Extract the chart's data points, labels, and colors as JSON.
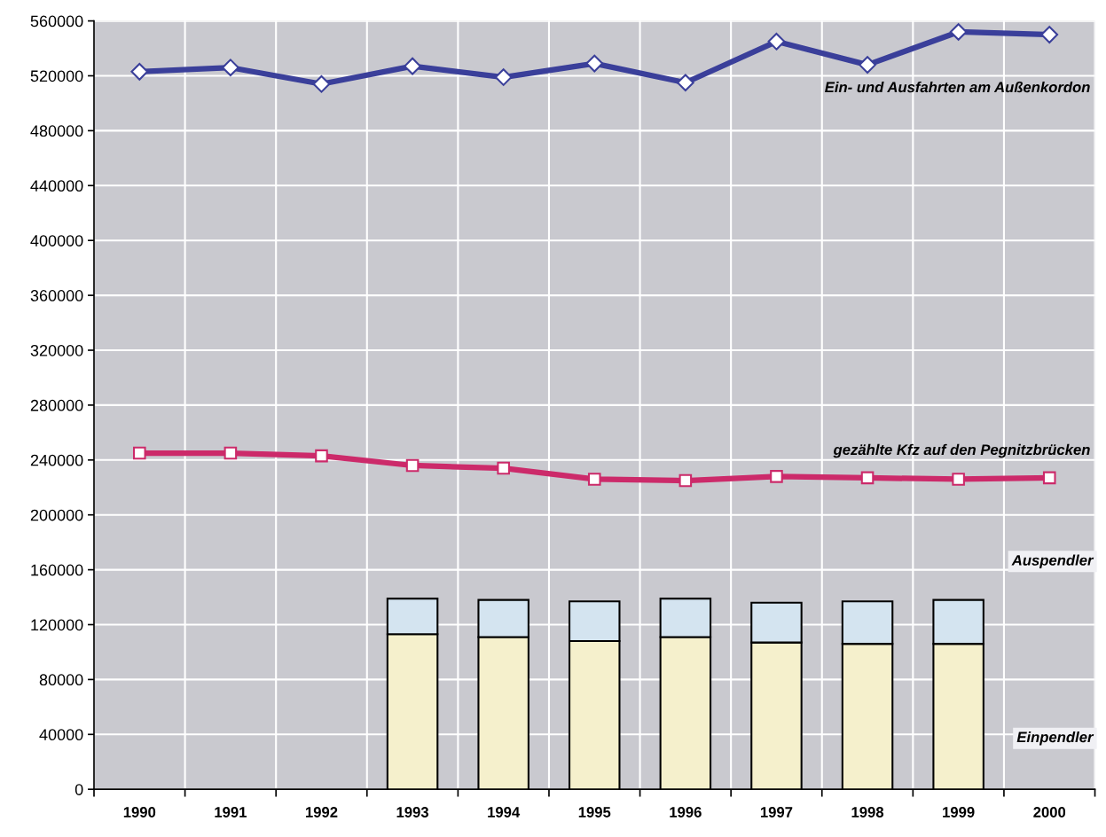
{
  "chart_data": {
    "type": "bar",
    "stacked": true,
    "categories": [
      "1990",
      "1991",
      "1992",
      "1993",
      "1994",
      "1995",
      "1996",
      "1997",
      "1998",
      "1999",
      "2000"
    ],
    "series": [
      {
        "name": "Einpendler",
        "color": "#f5f0cc",
        "values": [
          null,
          null,
          null,
          113000,
          111000,
          108000,
          111000,
          107000,
          106000,
          106000,
          null
        ]
      },
      {
        "name": "Auspendler",
        "color": "#d4e4f0",
        "values": [
          null,
          null,
          null,
          26000,
          27000,
          29000,
          28000,
          29000,
          31000,
          32000,
          null
        ]
      },
      {
        "name": "Ein- und Ausfahrten am Außenkordon",
        "type": "line",
        "color": "#3a3f9a",
        "marker": "diamond",
        "values": [
          523000,
          526000,
          514000,
          527000,
          519000,
          529000,
          515000,
          545000,
          528000,
          552000,
          550000
        ]
      },
      {
        "name": "gezählte Kfz auf den Pegnitzbrücken",
        "type": "line",
        "color": "#cc2a6a",
        "marker": "square",
        "values": [
          245000,
          245000,
          243000,
          236000,
          234000,
          226000,
          225000,
          228000,
          227000,
          226000,
          227000
        ]
      }
    ],
    "ylim": [
      0,
      560000
    ],
    "yticks": [
      0,
      40000,
      80000,
      120000,
      160000,
      200000,
      240000,
      280000,
      320000,
      360000,
      400000,
      440000,
      480000,
      520000,
      560000
    ],
    "grid": true,
    "legend": false
  }
}
